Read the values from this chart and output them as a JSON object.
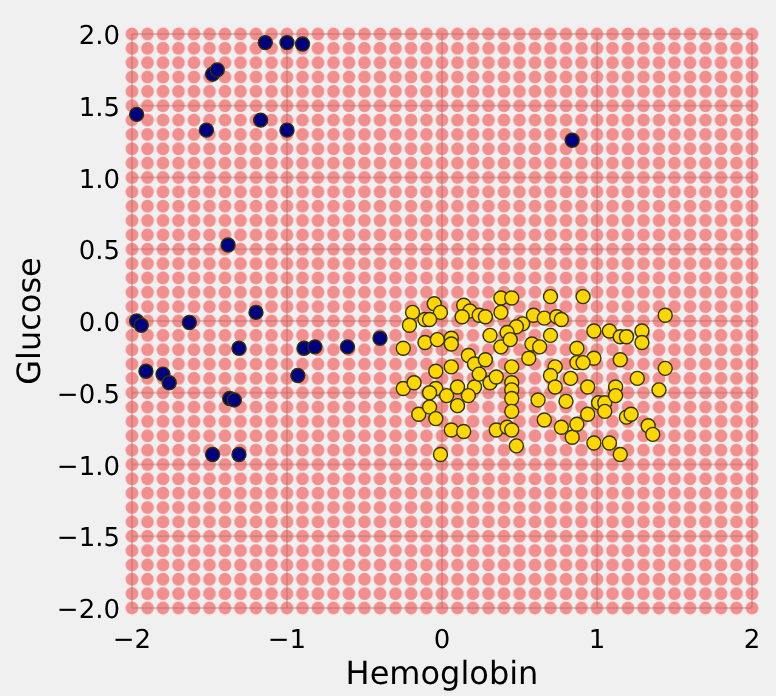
{
  "chart_data": {
    "type": "scatter",
    "xlabel": "Hemoglobin",
    "ylabel": "Glucose",
    "xlim": [
      -2,
      2
    ],
    "ylim": [
      -2,
      2
    ],
    "xticks": [
      {
        "value": -2,
        "label": "−2"
      },
      {
        "value": -1,
        "label": "−1"
      },
      0,
      1,
      2
    ],
    "yticks": [
      {
        "value": -2,
        "label": "−2.0"
      },
      {
        "value": -1.5,
        "label": "−1.5"
      },
      {
        "value": -1,
        "label": "−1.0"
      },
      {
        "value": -0.5,
        "label": "−0.5"
      },
      {
        "value": 0,
        "label": "0.0"
      },
      {
        "value": 0.5,
        "label": "0.5"
      },
      {
        "value": 1,
        "label": "1.0"
      },
      {
        "value": 1.5,
        "label": "1.5"
      },
      {
        "value": 2,
        "label": "2.0"
      }
    ],
    "grid": true,
    "marker": "circle",
    "bands": [
      {
        "axis": "y",
        "from": -2,
        "to": 2,
        "color": "#f28e8e"
      }
    ],
    "series": [
      {
        "color": "#000080",
        "x": [
          -1.97,
          -1.48,
          -1.45,
          -1.14,
          -1.0,
          -0.9,
          -1.52,
          -1.17,
          -1.0,
          -1.38,
          -1.2,
          0.84,
          -1.97,
          -1.94,
          -1.63,
          -1.31,
          -0.89,
          -0.82,
          -0.61,
          -0.4,
          -1.91,
          -1.8,
          -1.76,
          -1.37,
          -1.34,
          -0.93,
          -1.48,
          -1.31
        ],
        "values": [
          1.44,
          1.72,
          1.75,
          1.94,
          1.94,
          1.93,
          1.33,
          1.4,
          1.33,
          0.53,
          0.06,
          1.26,
          0.0,
          -0.03,
          -0.01,
          -0.19,
          -0.19,
          -0.18,
          -0.18,
          -0.12,
          -0.35,
          -0.37,
          -0.43,
          -0.54,
          -0.55,
          -0.38,
          -0.93,
          -0.93
        ]
      },
      {
        "color": "#ffd700",
        "x": [
          0.38,
          0.45,
          0.7,
          0.91,
          1.44,
          -0.05,
          0.14,
          -0.19,
          -0.01,
          0.18,
          -0.21,
          -0.11,
          -0.08,
          0.13,
          0.24,
          0.28,
          0.38,
          0.59,
          0.66,
          0.74,
          0.77,
          0.52,
          0.48,
          0.42,
          0.31,
          0.7,
          0.98,
          1.08,
          1.15,
          1.19,
          1.29,
          1.29,
          -0.25,
          -0.11,
          -0.03,
          0.06,
          0.06,
          0.38,
          0.44,
          0.58,
          0.63,
          0.87,
          0.98,
          0.87,
          0.91,
          1.15,
          1.44,
          -0.04,
          0.06,
          0.17,
          0.21,
          0.28,
          0.45,
          0.56,
          0.73,
          0.7,
          0.83,
          0.73,
          0.94,
          1.12,
          1.26,
          1.4,
          -0.25,
          -0.18,
          -0.04,
          -0.08,
          0.03,
          0.1,
          0.21,
          0.17,
          0.24,
          0.31,
          0.35,
          0.45,
          0.45,
          0.45,
          0.45,
          0.62,
          0.8,
          1.01,
          1.05,
          1.12,
          -0.15,
          -0.08,
          -0.04,
          0.1,
          0.94,
          1.05,
          1.19,
          1.22,
          0.06,
          0.14,
          0.35,
          0.42,
          0.48,
          0.66,
          0.77,
          0.84,
          0.87,
          0.98,
          1.08,
          1.15,
          1.33,
          1.36,
          -0.01,
          0.45
        ],
        "values": [
          0.16,
          0.16,
          0.17,
          0.17,
          0.04,
          0.12,
          0.11,
          0.06,
          0.06,
          0.07,
          -0.03,
          0.01,
          0.01,
          0.03,
          0.04,
          0.03,
          0.06,
          0.04,
          0.02,
          0.03,
          0.01,
          -0.02,
          -0.04,
          -0.08,
          -0.1,
          -0.1,
          -0.07,
          -0.07,
          -0.11,
          -0.11,
          -0.07,
          -0.15,
          -0.19,
          -0.15,
          -0.13,
          -0.12,
          -0.16,
          -0.18,
          -0.13,
          -0.16,
          -0.18,
          -0.19,
          -0.26,
          -0.29,
          -0.29,
          -0.27,
          -0.33,
          -0.35,
          -0.32,
          -0.24,
          -0.3,
          -0.27,
          -0.32,
          -0.26,
          -0.32,
          -0.38,
          -0.4,
          -0.46,
          -0.46,
          -0.46,
          -0.4,
          -0.48,
          -0.47,
          -0.43,
          -0.47,
          -0.5,
          -0.52,
          -0.46,
          -0.46,
          -0.52,
          -0.37,
          -0.43,
          -0.39,
          -0.43,
          -0.48,
          -0.54,
          -0.63,
          -0.55,
          -0.56,
          -0.57,
          -0.57,
          -0.52,
          -0.65,
          -0.6,
          -0.68,
          -0.59,
          -0.65,
          -0.63,
          -0.67,
          -0.65,
          -0.76,
          -0.77,
          -0.76,
          -0.74,
          -0.87,
          -0.69,
          -0.74,
          -0.81,
          -0.72,
          -0.85,
          -0.85,
          -0.93,
          -0.73,
          -0.79,
          -0.93,
          -0.76
        ]
      }
    ]
  }
}
